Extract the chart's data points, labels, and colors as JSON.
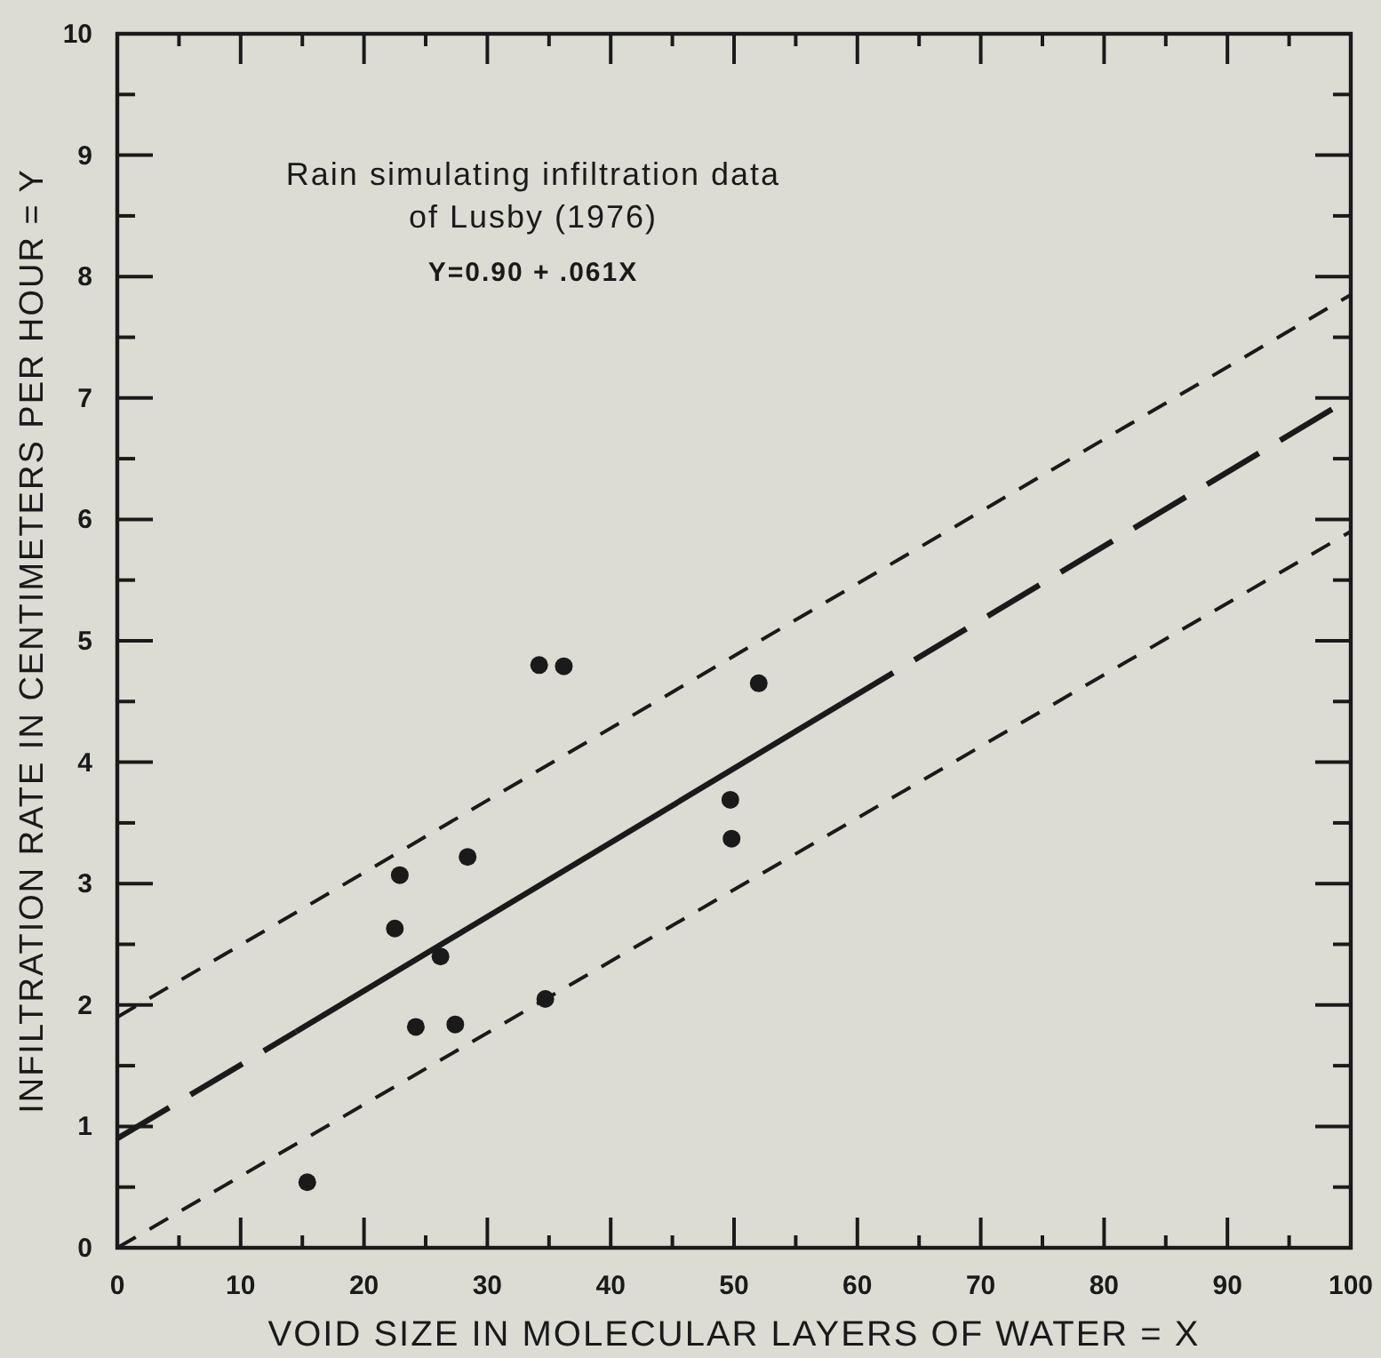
{
  "chart_data": {
    "type": "scatter",
    "xlabel": "VOID SIZE IN MOLECULAR LAYERS OF WATER = X",
    "ylabel": "INFILTRATION RATE IN CENTIMETERS PER HOUR = Y",
    "annotations": [
      "Rain simulating infiltration data\nof Lusby (1976)",
      "Y=0.90 + .061X"
    ],
    "x": [
      34.2,
      36.2,
      52.0,
      49.7,
      49.8,
      28.4,
      22.9,
      22.5,
      26.2,
      24.2,
      27.4,
      34.7,
      15.4
    ],
    "series": [
      {
        "color": "#1a1a1a",
        "marker": "circle",
        "values": [
          4.8,
          4.79,
          4.65,
          3.69,
          3.37,
          3.22,
          3.07,
          2.63,
          2.4,
          1.82,
          1.84,
          2.05,
          0.54
        ]
      },
      {
        "type": "line",
        "color": "#1a1a1a",
        "line_style": "solid",
        "x": [
          14.5,
          58.7
        ],
        "values": [
          1.78,
          4.48
        ]
      },
      {
        "type": "line",
        "color": "#1a1a1a",
        "line_style": "longdash",
        "x": [
          0,
          14.5
        ],
        "values": [
          0.9,
          1.78
        ]
      },
      {
        "type": "line",
        "color": "#1a1a1a",
        "line_style": "longdash",
        "x": [
          58.7,
          100
        ],
        "values": [
          4.48,
          7.0
        ]
      },
      {
        "type": "line",
        "color": "#1a1a1a",
        "line_style": "dashed",
        "x": [
          0,
          100
        ],
        "values": [
          1.9,
          7.85
        ]
      },
      {
        "type": "line",
        "color": "#1a1a1a",
        "line_style": "dashed",
        "x": [
          0,
          100
        ],
        "values": [
          0,
          5.9
        ]
      }
    ],
    "xlim": [
      0,
      100
    ],
    "ylim": [
      0,
      10
    ],
    "xticks": [
      0,
      {
        "value": 5,
        "label": null
      },
      10,
      {
        "value": 15,
        "label": null
      },
      20,
      {
        "value": 25,
        "label": null
      },
      30,
      {
        "value": 35,
        "label": null
      },
      40,
      {
        "value": 45,
        "label": null
      },
      50,
      {
        "value": 55,
        "label": null
      },
      60,
      {
        "value": 65,
        "label": null
      },
      70,
      {
        "value": 75,
        "label": null
      },
      80,
      {
        "value": 85,
        "label": null
      },
      90,
      {
        "value": 95,
        "label": null
      },
      100
    ],
    "yticks": [
      0,
      {
        "value": 0.5,
        "label": null
      },
      1,
      {
        "value": 1.5,
        "label": null
      },
      2,
      {
        "value": 2.5,
        "label": null
      },
      3,
      {
        "value": 3.5,
        "label": null
      },
      4,
      {
        "value": 4.5,
        "label": null
      },
      5,
      {
        "value": 5.5,
        "label": null
      },
      6,
      {
        "value": 6.5,
        "label": null
      },
      7,
      {
        "value": 7.5,
        "label": null
      },
      8,
      {
        "value": 8.5,
        "label": null
      },
      9,
      {
        "value": 9.5,
        "label": null
      },
      10
    ],
    "grid": false
  }
}
